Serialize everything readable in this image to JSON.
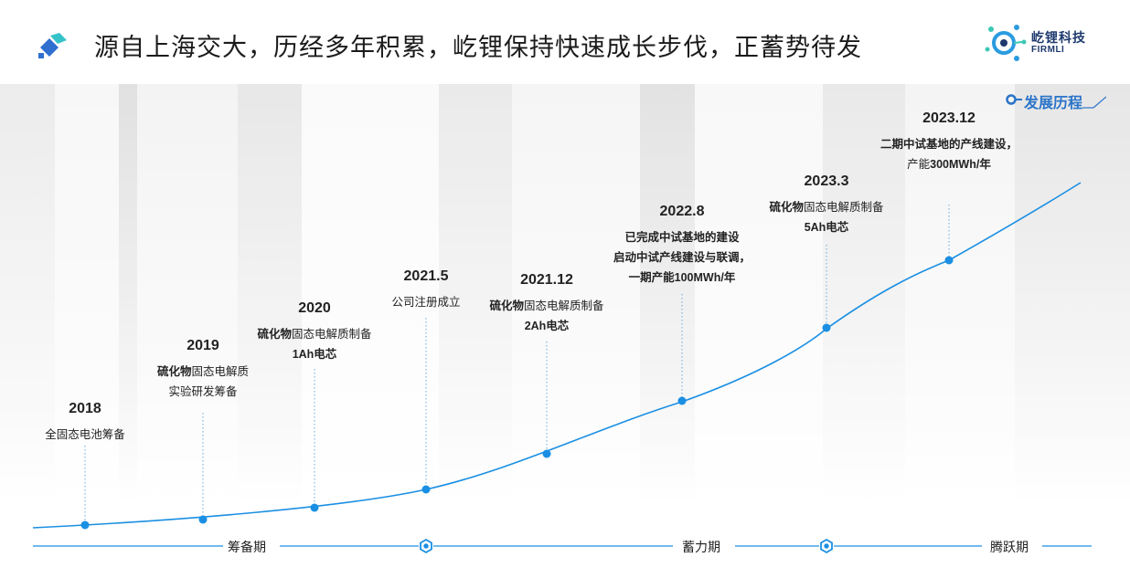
{
  "title": "源自上海交大，历经多年积累，屹锂保持快速成长步伐，正蓄势待发",
  "logo": {
    "name_cn": "屹锂科技",
    "name_en": "FIRMLI"
  },
  "section_tag": "发展历程",
  "accent_color": "#1a8fe3",
  "events": [
    {
      "year": "2018",
      "lines": [
        {
          "bold": "",
          "text": "全固态电池筹备"
        }
      ]
    },
    {
      "year": "2019",
      "lines": [
        {
          "bold": "硫化物",
          "text": "固态电解质"
        },
        {
          "bold": "",
          "text": "实验研发筹备"
        }
      ]
    },
    {
      "year": "2020",
      "lines": [
        {
          "bold": "硫化物",
          "text": "固态电解质制备"
        },
        {
          "bold": "1Ah电芯",
          "text": ""
        }
      ]
    },
    {
      "year": "2021.5",
      "lines": [
        {
          "bold": "",
          "text": "公司注册成立"
        }
      ]
    },
    {
      "year": "2021.12",
      "lines": [
        {
          "bold": "硫化物",
          "text": "固态电解质制备"
        },
        {
          "bold": "2Ah电芯",
          "text": ""
        }
      ]
    },
    {
      "year": "2022.8",
      "lines": [
        {
          "bold": "已完成中试基地的建设",
          "text": ""
        },
        {
          "bold": "启动中试产线建设与联调，",
          "text": ""
        },
        {
          "bold": "一期产能100MWh/年",
          "text": ""
        }
      ]
    },
    {
      "year": "2023.3",
      "lines": [
        {
          "bold": "硫化物",
          "text": "固态电解质制备"
        },
        {
          "bold": "5Ah电芯",
          "text": ""
        }
      ]
    },
    {
      "year": "2023.12",
      "lines": [
        {
          "bold": "二期中试基地的产线建设，",
          "text": ""
        },
        {
          "bold": "",
          "text": "产能"
        },
        {
          "bold": "300MWh/年",
          "text": ""
        }
      ]
    }
  ],
  "phases": [
    "筹备期",
    "蓄力期",
    "腾跃期"
  ]
}
